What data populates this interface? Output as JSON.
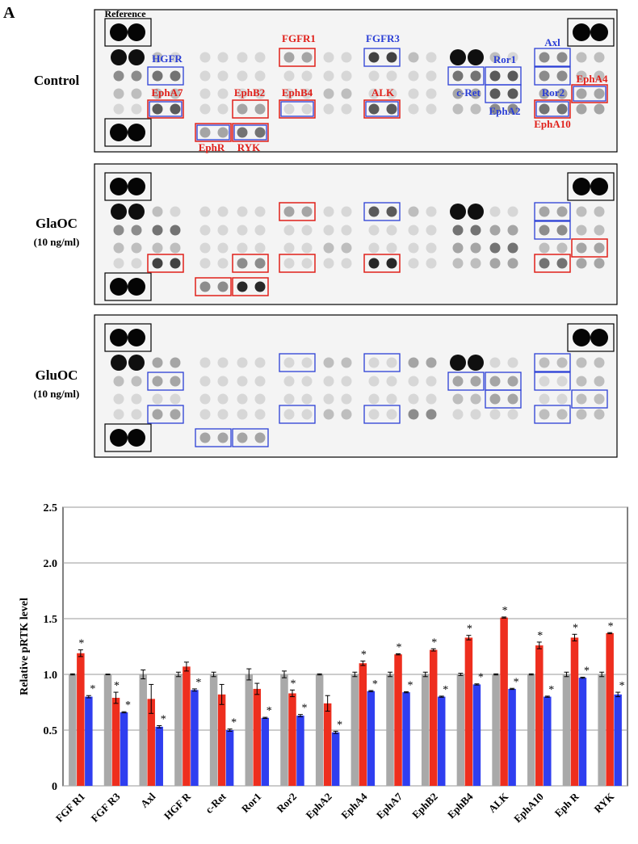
{
  "panel_label": "A",
  "blots": [
    {
      "label": "Control",
      "reference_label": "Reference",
      "spot_labels": [
        {
          "text": "HGFR",
          "color": "#2b3fd6"
        },
        {
          "text": "EphA7",
          "color": "#e0201a"
        },
        {
          "text": "EphB2",
          "color": "#e0201a"
        },
        {
          "text": "EphB4",
          "color": "#e0201a"
        },
        {
          "text": "FGFR1",
          "color": "#e0201a"
        },
        {
          "text": "FGFR3",
          "color": "#2b3fd6"
        },
        {
          "text": "ALK",
          "color": "#e0201a"
        },
        {
          "text": "c-Ret",
          "color": "#2b3fd6"
        },
        {
          "text": "Ror1",
          "color": "#2b3fd6"
        },
        {
          "text": "EphA2",
          "color": "#2b3fd6"
        },
        {
          "text": "Axl",
          "color": "#2b3fd6"
        },
        {
          "text": "Ror2",
          "color": "#2b3fd6"
        },
        {
          "text": "EphA10",
          "color": "#e0201a"
        },
        {
          "text": "EphA4",
          "color": "#e0201a"
        },
        {
          "text": "EphR",
          "color": "#e0201a"
        },
        {
          "text": "RYK",
          "color": "#e0201a"
        }
      ]
    },
    {
      "label": "GlaOC",
      "sublabel": "(10 ng/ml)"
    },
    {
      "label": "GluOC",
      "sublabel": "(10 ng/ml)"
    }
  ],
  "chart_data": {
    "type": "bar",
    "ylabel": "Relative pRTK level",
    "categories": [
      "FGF R1",
      "FGF R3",
      "Axl",
      "HGF R",
      "c-Ret",
      "Ror1",
      "Ror2",
      "EphA2",
      "EphA4",
      "EphA7",
      "EphB2",
      "EphB4",
      "ALK",
      "EphA10",
      "Eph R",
      "RYK"
    ],
    "ylim": [
      0,
      2.5
    ],
    "yticks": [
      0,
      0.5,
      {
        "value": 1,
        "label": "1.0"
      },
      1.5,
      {
        "value": 2,
        "label": "2.0"
      },
      2.5
    ],
    "grid": true,
    "significance_mark": "*",
    "series": [
      {
        "color": "#a9a9a9",
        "values": [
          1.0,
          1.0,
          1.0,
          1.0,
          1.0,
          1.0,
          1.0,
          1.0,
          1.0,
          1.0,
          1.0,
          1.0,
          1.0,
          1.0,
          1.0,
          1.0
        ],
        "errors": [
          0.005,
          0.003,
          0.04,
          0.02,
          0.02,
          0.05,
          0.03,
          0.005,
          0.02,
          0.02,
          0.02,
          0.01,
          0.005,
          0.005,
          0.02,
          0.02
        ],
        "significant": [
          false,
          false,
          false,
          false,
          false,
          false,
          false,
          false,
          false,
          false,
          false,
          false,
          false,
          false,
          false,
          false
        ]
      },
      {
        "color": "#ee2e1e",
        "values": [
          1.19,
          0.79,
          0.78,
          1.07,
          0.82,
          0.87,
          0.83,
          0.74,
          1.1,
          1.18,
          1.22,
          1.33,
          1.51,
          1.26,
          1.33,
          1.37
        ],
        "errors": [
          0.03,
          0.05,
          0.13,
          0.04,
          0.09,
          0.05,
          0.03,
          0.07,
          0.02,
          0.005,
          0.01,
          0.02,
          0.005,
          0.03,
          0.03,
          0.005
        ],
        "significant": [
          true,
          true,
          false,
          false,
          false,
          false,
          true,
          false,
          true,
          true,
          true,
          true,
          true,
          true,
          true,
          true
        ]
      },
      {
        "color": "#2f3ef0",
        "values": [
          0.8,
          0.66,
          0.53,
          0.86,
          0.5,
          0.61,
          0.63,
          0.48,
          0.85,
          0.84,
          0.8,
          0.91,
          0.87,
          0.8,
          0.97,
          0.82
        ],
        "errors": [
          0.01,
          0.005,
          0.01,
          0.01,
          0.01,
          0.005,
          0.01,
          0.01,
          0.005,
          0.005,
          0.005,
          0.005,
          0.005,
          0.005,
          0.005,
          0.02
        ],
        "significant": [
          true,
          true,
          true,
          true,
          true,
          true,
          true,
          true,
          true,
          true,
          true,
          true,
          true,
          true,
          true,
          true
        ]
      }
    ]
  }
}
